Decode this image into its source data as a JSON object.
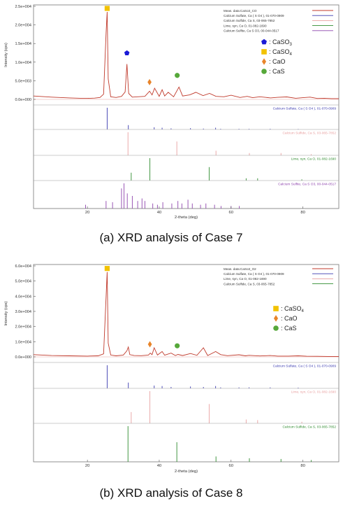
{
  "chart_data": [
    {
      "type": "line",
      "caption": "(a) XRD analysis of Case 7",
      "ylabel": "Intensity (cps)",
      "xlabel": "2-theta (deg)",
      "x_ticks": [
        "20",
        "40",
        "60",
        "80"
      ],
      "xlim": [
        5,
        90
      ],
      "ylim": [
        -500,
        25000
      ],
      "y_ticks": [
        "0.0e+000",
        "5.0e+003",
        "1.0e+004",
        "1.5e+004",
        "2.0e+004",
        "2.5e+004"
      ],
      "y_tick_values": [
        0,
        5000,
        10000,
        15000,
        20000,
        25000
      ],
      "legend_lines": [
        {
          "label": "Meas. data:CaSo3_CO",
          "color": "#c0392b"
        },
        {
          "label": "Calcium Sulfate, Ca ( S O4 ), 01-070-0909",
          "color": "#3a3ab0"
        },
        {
          "label": "Calcium Sulfide, Ca S, 03-065-7852",
          "color": "#e8a0a0"
        },
        {
          "label": "Lime, syn, Ca O, 01-082-1690",
          "color": "#2e8b2e"
        },
        {
          "label": "Calcium Sulfite, Ca S O3, 00-044-0517",
          "color": "#8e44ad"
        }
      ],
      "phase_legend": [
        {
          "marker": "pentagon",
          "color": "#1a1ad6",
          "label": ": CaSO",
          "sub": "3"
        },
        {
          "marker": "square",
          "color": "#f2c200",
          "label": ": CaSO",
          "sub": "4"
        },
        {
          "marker": "diamond",
          "color": "#e8842a",
          "label": ": CaO",
          "sub": ""
        },
        {
          "marker": "circle",
          "color": "#56a83a",
          "label": ": CaS",
          "sub": ""
        }
      ],
      "pattern_x": [
        5,
        10,
        15,
        18,
        20,
        22,
        23.5,
        24.5,
        25.2,
        25.5,
        25.8,
        26.5,
        28,
        29.5,
        30.5,
        31.0,
        31.5,
        32.5,
        34,
        36,
        37.3,
        38.0,
        38.7,
        40.0,
        40.8,
        41.5,
        42.5,
        44.0,
        45.5,
        46.5,
        48.5,
        50.2,
        52.2,
        54.0,
        55.8,
        58.0,
        60.0,
        62.5,
        64.5,
        66.0,
        68.0,
        71.0,
        73.0,
        75.5,
        78.0,
        80.0,
        82.0,
        84.0,
        86.0,
        88.0,
        90.0
      ],
      "pattern_y": [
        900,
        600,
        400,
        300,
        260,
        330,
        500,
        1400,
        18000,
        23500,
        5500,
        700,
        500,
        800,
        2000,
        9500,
        1600,
        600,
        700,
        800,
        2200,
        1200,
        3000,
        800,
        2600,
        900,
        1900,
        700,
        3300,
        900,
        1200,
        1900,
        1000,
        1600,
        800,
        700,
        1100,
        500,
        800,
        450,
        700,
        400,
        550,
        650,
        300,
        450,
        600,
        250,
        300,
        200,
        200
      ],
      "markers": [
        {
          "phase": "CaSO4",
          "x": 25.5,
          "y": 23500
        },
        {
          "phase": "CaSO3",
          "x": 31.0,
          "y": 11500
        },
        {
          "phase": "CaO",
          "x": 37.3,
          "y": 3700
        },
        {
          "phase": "CaS",
          "x": 45.0,
          "y": 5500
        }
      ],
      "reference_panels": [
        {
          "label": "Calcium Sulfate, Ca ( S O4 ), 01-070-0909",
          "color": "#3a3ab0",
          "peaks": [
            [
              25.5,
              1.0
            ],
            [
              31.4,
              0.2
            ],
            [
              38.6,
              0.1
            ],
            [
              40.8,
              0.08
            ],
            [
              43.3,
              0.05
            ],
            [
              48.7,
              0.06
            ],
            [
              52.3,
              0.04
            ],
            [
              55.7,
              0.08
            ],
            [
              57.1,
              0.03
            ],
            [
              62.2,
              0.03
            ],
            [
              65.0,
              0.03
            ],
            [
              70.9,
              0.03
            ],
            [
              78.7,
              0.02
            ]
          ]
        },
        {
          "label": "Calcium Sulfide, Ca S, 03-065-7852",
          "color": "#e8a0a0",
          "peaks": [
            [
              31.3,
              1.0
            ],
            [
              44.9,
              0.6
            ],
            [
              55.8,
              0.2
            ],
            [
              65.1,
              0.1
            ],
            [
              73.9,
              0.1
            ],
            [
              82.3,
              0.05
            ]
          ]
        },
        {
          "label": "Lime, syn, Ca O, 01-082-1690",
          "color": "#2e8b2e",
          "peaks": [
            [
              32.2,
              0.35
            ],
            [
              37.4,
              1.0
            ],
            [
              53.9,
              0.6
            ],
            [
              64.2,
              0.1
            ],
            [
              67.4,
              0.1
            ],
            [
              79.7,
              0.05
            ]
          ]
        },
        {
          "label": "Calcium Sulfite, Ca S O3, 00-044-0517",
          "color": "#8e44ad",
          "peaks": [
            [
              19.5,
              0.15
            ],
            [
              25.2,
              0.3
            ],
            [
              27.0,
              0.25
            ],
            [
              29.5,
              0.8
            ],
            [
              30.2,
              1.0
            ],
            [
              31.1,
              0.6
            ],
            [
              32.5,
              0.5
            ],
            [
              34.0,
              0.3
            ],
            [
              35.2,
              0.4
            ],
            [
              36.0,
              0.3
            ],
            [
              38.2,
              0.2
            ],
            [
              39.5,
              0.15
            ],
            [
              41.0,
              0.25
            ],
            [
              43.5,
              0.2
            ],
            [
              45.2,
              0.3
            ],
            [
              46.3,
              0.2
            ],
            [
              48.0,
              0.35
            ],
            [
              49.2,
              0.2
            ],
            [
              51.5,
              0.15
            ],
            [
              53.0,
              0.2
            ],
            [
              55.4,
              0.15
            ],
            [
              57.2,
              0.1
            ],
            [
              60.0,
              0.1
            ],
            [
              62.3,
              0.1
            ]
          ]
        }
      ]
    },
    {
      "type": "line",
      "caption": "(b) XRD analysis of Case 8",
      "ylabel": "Intensity (cps)",
      "xlabel": "2-theta (deg)",
      "x_ticks": [
        "20",
        "40",
        "60",
        "80"
      ],
      "xlim": [
        5,
        90
      ],
      "ylim": [
        -500,
        60000
      ],
      "y_ticks": [
        "0.0e+000",
        "1.0e+004",
        "2.0e+004",
        "3.0e+004",
        "4.0e+004",
        "5.0e+004",
        "6.0e+004"
      ],
      "y_tick_values": [
        0,
        10000,
        20000,
        30000,
        40000,
        50000,
        60000
      ],
      "legend_lines": [
        {
          "label": "Meas. data:CaSo3_O2",
          "color": "#c0392b"
        },
        {
          "label": "Calcium Sulfate, Ca ( S O4 ), 01-070-0909",
          "color": "#3a3ab0"
        },
        {
          "label": "Lime, syn, Ca O, 01-082-1690",
          "color": "#e8a0a0"
        },
        {
          "label": "Calcium Sulfide, Ca S, 03-065-7852",
          "color": "#2e8b2e"
        }
      ],
      "phase_legend": [
        {
          "marker": "square",
          "color": "#f2c200",
          "label": ": CaSO",
          "sub": "4"
        },
        {
          "marker": "diamond",
          "color": "#e8842a",
          "label": ": CaO",
          "sub": ""
        },
        {
          "marker": "circle",
          "color": "#56a83a",
          "label": ": CaS",
          "sub": ""
        }
      ],
      "pattern_x": [
        5,
        10,
        15,
        20,
        23,
        24.5,
        25.2,
        25.5,
        25.8,
        26.5,
        28,
        30,
        31.0,
        31.4,
        31.8,
        33,
        35,
        37.0,
        37.5,
        38.0,
        38.6,
        39.5,
        40.8,
        41.5,
        43.3,
        44.5,
        45.2,
        46.5,
        48.7,
        50.5,
        52.3,
        53.5,
        55.7,
        57.1,
        59.0,
        62.2,
        64.0,
        65.0,
        68.0,
        70.9,
        73.0,
        76.0,
        78.7,
        81.0,
        84.0,
        87.0,
        90.0
      ],
      "pattern_y": [
        1500,
        900,
        700,
        500,
        700,
        2000,
        40000,
        56000,
        9000,
        1200,
        700,
        1200,
        4000,
        6500,
        1500,
        900,
        800,
        1200,
        2500,
        1500,
        6000,
        1200,
        3500,
        1100,
        2500,
        900,
        1600,
        900,
        2200,
        1000,
        6000,
        900,
        3500,
        1500,
        800,
        1400,
        700,
        1000,
        600,
        900,
        500,
        500,
        700,
        400,
        350,
        300,
        300
      ],
      "markers": [
        {
          "phase": "CaSO4",
          "x": 25.5,
          "y": 56000
        },
        {
          "phase": "CaO",
          "x": 37.4,
          "y": 6000
        },
        {
          "phase": "CaS",
          "x": 45.0,
          "y": 5000
        }
      ],
      "reference_panels": [
        {
          "label": "Calcium Sulfate, Ca ( S O4 ), 01-070-0909",
          "color": "#3a3ab0",
          "peaks": [
            [
              25.5,
              1.0
            ],
            [
              31.4,
              0.25
            ],
            [
              38.6,
              0.12
            ],
            [
              40.8,
              0.1
            ],
            [
              43.3,
              0.06
            ],
            [
              48.7,
              0.08
            ],
            [
              52.3,
              0.06
            ],
            [
              55.7,
              0.1
            ],
            [
              57.1,
              0.04
            ],
            [
              62.2,
              0.04
            ],
            [
              65.0,
              0.04
            ],
            [
              70.9,
              0.04
            ],
            [
              78.7,
              0.03
            ]
          ]
        },
        {
          "label": "Lime, syn, Ca O, 01-082-1690",
          "color": "#e8a0a0",
          "peaks": [
            [
              32.2,
              0.35
            ],
            [
              37.4,
              1.0
            ],
            [
              53.9,
              0.6
            ],
            [
              64.2,
              0.12
            ],
            [
              67.4,
              0.1
            ],
            [
              79.7,
              0.05
            ]
          ]
        },
        {
          "label": "Calcium Sulfide, Ca S, 03-065-7852",
          "color": "#2e8b2e",
          "peaks": [
            [
              31.3,
              1.0
            ],
            [
              44.9,
              0.55
            ],
            [
              55.8,
              0.15
            ],
            [
              65.1,
              0.1
            ],
            [
              73.9,
              0.08
            ],
            [
              82.3,
              0.05
            ]
          ]
        }
      ]
    }
  ]
}
